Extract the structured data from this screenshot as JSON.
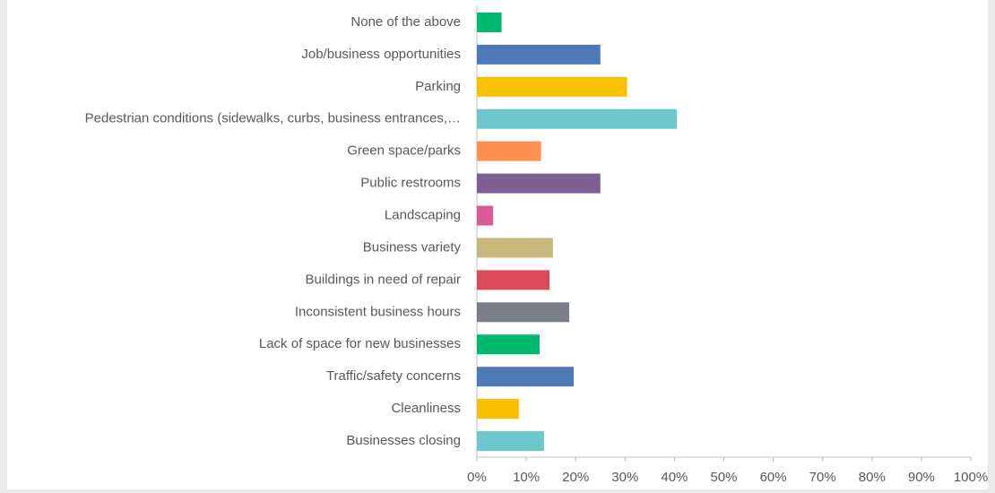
{
  "chart_data": {
    "type": "bar",
    "orientation": "horizontal",
    "categories": [
      "None of the above",
      "Job/business opportunities",
      "Parking",
      "Pedestrian conditions (sidewalks, curbs, business entrances,…",
      "Green space/parks",
      "Public restrooms",
      "Landscaping",
      "Business variety",
      "Buildings in need of repair",
      "Inconsistent business hours",
      "Lack of space for new businesses",
      "Traffic/safety concerns",
      "Cleanliness",
      "Businesses closing"
    ],
    "values": [
      5,
      25,
      30.4,
      40.5,
      13,
      25,
      3.3,
      15.4,
      14.7,
      18.7,
      12.7,
      19.6,
      8.5,
      13.6
    ],
    "colors": [
      "#00b971",
      "#4f7ab8",
      "#f9c000",
      "#6cc8cc",
      "#ff9052",
      "#7d5f95",
      "#d95c96",
      "#c7b77a",
      "#dd4b5b",
      "#7a7f87",
      "#00b971",
      "#4f7ab8",
      "#f9c000",
      "#6cc8cc"
    ],
    "xlim": [
      0,
      100
    ],
    "xticks": [
      {
        "value": 0,
        "label": "0%"
      },
      {
        "value": 10,
        "label": "10%"
      },
      {
        "value": 20,
        "label": "20%"
      },
      {
        "value": 30,
        "label": "30%"
      },
      {
        "value": 40,
        "label": "40%"
      },
      {
        "value": 50,
        "label": "50%"
      },
      {
        "value": 60,
        "label": "60%"
      },
      {
        "value": 70,
        "label": "70%"
      },
      {
        "value": 80,
        "label": "80%"
      },
      {
        "value": 90,
        "label": "90%"
      },
      {
        "value": 100,
        "label": "100%"
      }
    ],
    "grid": false
  }
}
